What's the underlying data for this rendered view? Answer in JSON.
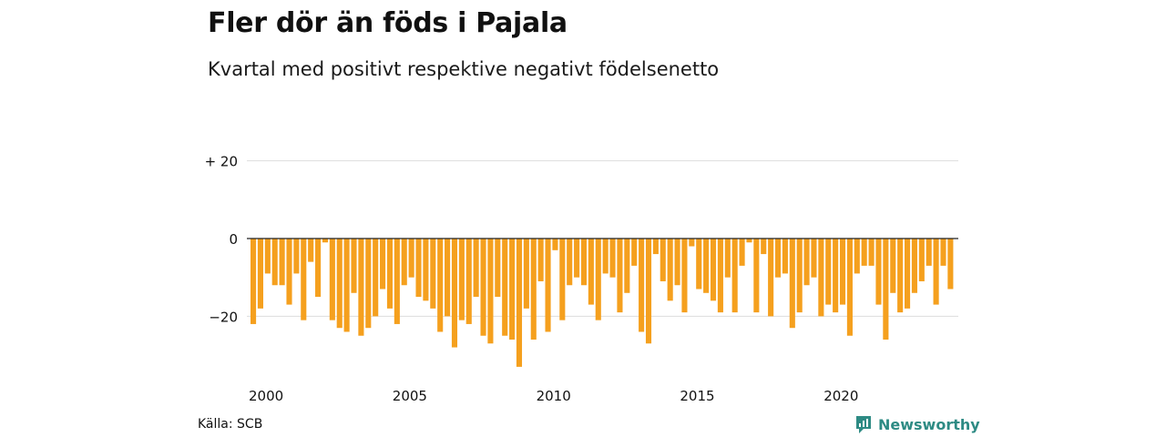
{
  "title": "Fler dör än föds i Pajala",
  "subtitle": "Kvartal med positivt respektive negativt födelsenetto",
  "source": "Källa: SCB",
  "brand": "Newsworthy",
  "colors": {
    "bar": "#f5a01e",
    "grid": "#dddddd",
    "zero_line": "#222222",
    "brand": "#2e8b84"
  },
  "chart_data": {
    "type": "bar",
    "x_start": "2000",
    "period": "quarter",
    "xticks": [
      "2000",
      "2005",
      "2010",
      "2015",
      "2020"
    ],
    "yticks": [
      {
        "value": 20,
        "label": "+ 20"
      },
      {
        "value": 0,
        "label": "0"
      },
      {
        "value": -20,
        "label": "−20"
      }
    ],
    "ylim": [
      -34,
      21
    ],
    "grid": true,
    "values": [
      -22,
      -18,
      -9,
      -12,
      -12,
      -17,
      -9,
      -21,
      -6,
      -15,
      -1,
      -21,
      -23,
      -24,
      -14,
      -25,
      -23,
      -20,
      -13,
      -18,
      -22,
      -12,
      -10,
      -15,
      -16,
      -18,
      -24,
      -20,
      -28,
      -21,
      -22,
      -15,
      -25,
      -27,
      -15,
      -25,
      -26,
      -33,
      -18,
      -26,
      -11,
      -24,
      -3,
      -21,
      -12,
      -10,
      -12,
      -17,
      -21,
      -9,
      -10,
      -19,
      -14,
      -7,
      -24,
      -27,
      -4,
      -11,
      -16,
      -12,
      -19,
      -2,
      -13,
      -14,
      -16,
      -19,
      -10,
      -19,
      -7,
      -1,
      -19,
      -4,
      -20,
      -10,
      -9,
      -23,
      -19,
      -12,
      -10,
      -20,
      -17,
      -19,
      -17,
      -25,
      -9,
      -7,
      -7,
      -17,
      -26,
      -14,
      -19,
      -18,
      -14,
      -11,
      -7,
      -17,
      -7,
      -13
    ]
  }
}
